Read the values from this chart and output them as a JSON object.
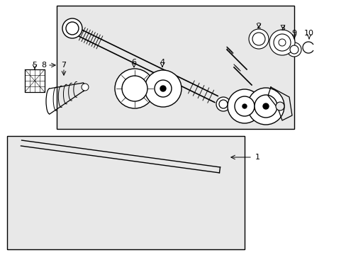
{
  "background_color": "#ffffff",
  "box_bg": "#e8e8e8",
  "line_color": "#000000",
  "figsize": [
    4.89,
    3.6
  ],
  "dpi": 100
}
